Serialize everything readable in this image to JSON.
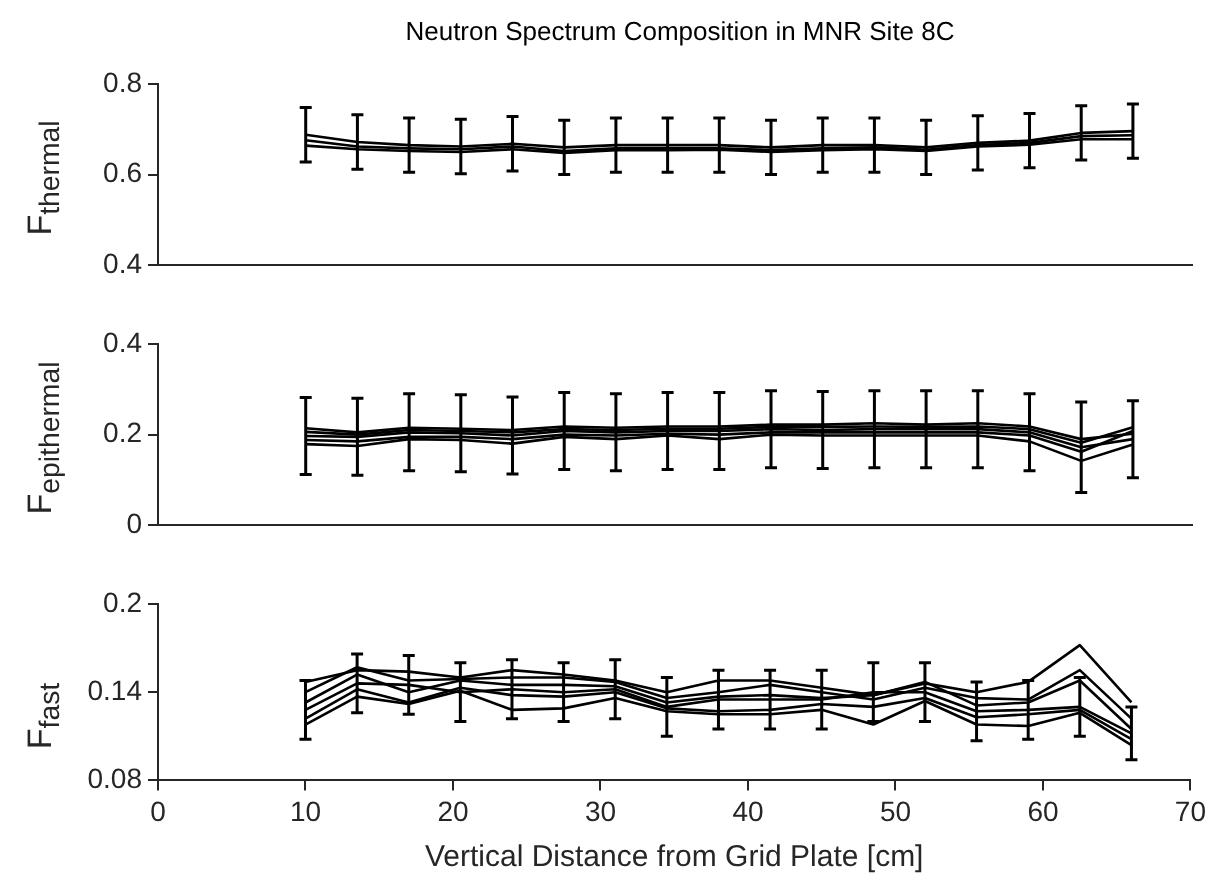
{
  "chart_data": [
    {
      "type": "line",
      "title": "Neutron Spectrum Composition in MNR Site 8C",
      "ylabel": "F$_{thermal}$",
      "marker": "none",
      "tick_labels": "y",
      "xlim": [
        0,
        70
      ],
      "ylim": [
        0.4,
        0.8
      ],
      "yticks": [
        0.4,
        0.6,
        0.8
      ],
      "x": [
        10,
        13.5,
        17,
        20.5,
        24,
        27.5,
        31,
        34.5,
        38,
        41.5,
        45,
        48.5,
        52,
        55.5,
        59,
        62.5,
        66
      ],
      "series": [
        {
          "color": "#000000",
          "values": [
            0.688,
            0.672,
            0.665,
            0.662,
            0.668,
            0.66,
            0.665,
            0.665,
            0.665,
            0.66,
            0.665,
            0.665,
            0.66,
            0.67,
            0.675,
            0.692,
            0.696
          ],
          "errors": [
            0.06,
            0.06,
            0.06,
            0.06,
            0.06,
            0.06,
            0.06,
            0.06,
            0.06,
            0.06,
            0.06,
            0.06,
            0.06,
            0.06,
            0.06,
            0.06,
            0.06
          ]
        },
        {
          "color": "#000000",
          "values": [
            0.676,
            0.662,
            0.658,
            0.656,
            0.662,
            0.652,
            0.658,
            0.658,
            0.658,
            0.654,
            0.658,
            0.66,
            0.655,
            0.665,
            0.67,
            0.685,
            0.687
          ]
        },
        {
          "color": "#000000",
          "values": [
            0.664,
            0.656,
            0.652,
            0.65,
            0.656,
            0.648,
            0.654,
            0.654,
            0.655,
            0.65,
            0.654,
            0.656,
            0.652,
            0.662,
            0.666,
            0.678,
            0.678
          ]
        }
      ]
    },
    {
      "type": "line",
      "ylabel": "F$_{epithermal}$",
      "marker": "none",
      "tick_labels": "y",
      "xlim": [
        0,
        70
      ],
      "ylim": [
        0,
        0.4
      ],
      "yticks": [
        0,
        0.2,
        0.4
      ],
      "x": [
        10,
        13.5,
        17,
        20.5,
        24,
        27.5,
        31,
        34.5,
        38,
        41.5,
        45,
        48.5,
        52,
        55.5,
        59,
        62.5,
        66
      ],
      "series": [
        {
          "color": "#000000",
          "values": [
            0.214,
            0.205,
            0.215,
            0.213,
            0.21,
            0.218,
            0.215,
            0.218,
            0.218,
            0.222,
            0.222,
            0.225,
            0.222,
            0.225,
            0.218,
            0.19,
            0.202
          ]
        },
        {
          "color": "#000000",
          "values": [
            0.206,
            0.2,
            0.21,
            0.208,
            0.205,
            0.212,
            0.21,
            0.213,
            0.213,
            0.217,
            0.217,
            0.218,
            0.217,
            0.218,
            0.212,
            0.182,
            0.216
          ]
        },
        {
          "color": "#000000",
          "values": [
            0.197,
            0.195,
            0.205,
            0.203,
            0.198,
            0.208,
            0.205,
            0.208,
            0.208,
            0.212,
            0.21,
            0.212,
            0.212,
            0.212,
            0.205,
            0.172,
            0.19
          ],
          "errors": [
            0.085,
            0.085,
            0.085,
            0.085,
            0.085,
            0.085,
            0.085,
            0.085,
            0.085,
            0.085,
            0.085,
            0.085,
            0.085,
            0.085,
            0.085,
            0.1,
            0.085
          ]
        },
        {
          "color": "#000000",
          "values": [
            0.188,
            0.185,
            0.195,
            0.195,
            0.19,
            0.2,
            0.198,
            0.202,
            0.2,
            0.205,
            0.205,
            0.205,
            0.205,
            0.205,
            0.198,
            0.162,
            0.208
          ]
        },
        {
          "color": "#000000",
          "values": [
            0.179,
            0.175,
            0.19,
            0.188,
            0.18,
            0.195,
            0.19,
            0.198,
            0.19,
            0.2,
            0.198,
            0.198,
            0.198,
            0.198,
            0.185,
            0.142,
            0.178
          ]
        }
      ]
    },
    {
      "type": "line",
      "ylabel": "F$_{fast}$",
      "xlabel": "Vertical Distance from Grid Plate [cm]",
      "marker": "none",
      "xlim": [
        0,
        70
      ],
      "xticks": [
        0,
        10,
        20,
        30,
        40,
        50,
        60,
        70
      ],
      "ylim": [
        0.08,
        0.2
      ],
      "yticks": [
        0.08,
        0.14,
        0.2
      ],
      "x": [
        10,
        13.5,
        17,
        20.5,
        24,
        27.5,
        31,
        34.5,
        38,
        41.5,
        45,
        48.5,
        52,
        55.5,
        59,
        62.5,
        66
      ],
      "series": [
        {
          "color": "#000000",
          "values": [
            0.147,
            0.155,
            0.154,
            0.15,
            0.155,
            0.152,
            0.148,
            0.14,
            0.148,
            0.148,
            0.143,
            0.138,
            0.146,
            0.14,
            0.147,
            0.172,
            0.133
          ]
        },
        {
          "color": "#000000",
          "values": [
            0.14,
            0.157,
            0.148,
            0.149,
            0.15,
            0.15,
            0.147,
            0.136,
            0.14,
            0.145,
            0.14,
            0.135,
            0.143,
            0.136,
            0.135,
            0.155,
            0.122
          ]
        },
        {
          "color": "#000000",
          "values": [
            0.133,
            0.152,
            0.14,
            0.148,
            0.145,
            0.145,
            0.144,
            0.133,
            0.137,
            0.138,
            0.136,
            0.138,
            0.147,
            0.131,
            0.133,
            0.148,
            0.115
          ]
        },
        {
          "color": "#000000",
          "values": [
            0.128,
            0.146,
            0.145,
            0.14,
            0.142,
            0.14,
            0.142,
            0.13,
            0.135,
            0.135,
            0.135,
            0.14,
            0.14,
            0.127,
            0.128,
            0.13,
            0.112
          ],
          "errors": [
            0.02,
            0.02,
            0.02,
            0.02,
            0.02,
            0.02,
            0.02,
            0.02,
            0.02,
            0.02,
            0.02,
            0.02,
            0.02,
            0.02,
            0.02,
            0.02,
            0.018
          ]
        },
        {
          "color": "#000000",
          "values": [
            0.122,
            0.142,
            0.133,
            0.143,
            0.138,
            0.137,
            0.14,
            0.129,
            0.127,
            0.128,
            0.132,
            0.13,
            0.136,
            0.123,
            0.125,
            0.128,
            0.108
          ]
        },
        {
          "color": "#000000",
          "values": [
            0.118,
            0.137,
            0.132,
            0.141,
            0.128,
            0.129,
            0.136,
            0.127,
            0.125,
            0.125,
            0.128,
            0.118,
            0.134,
            0.118,
            0.117,
            0.126,
            0.104
          ]
        }
      ]
    }
  ]
}
